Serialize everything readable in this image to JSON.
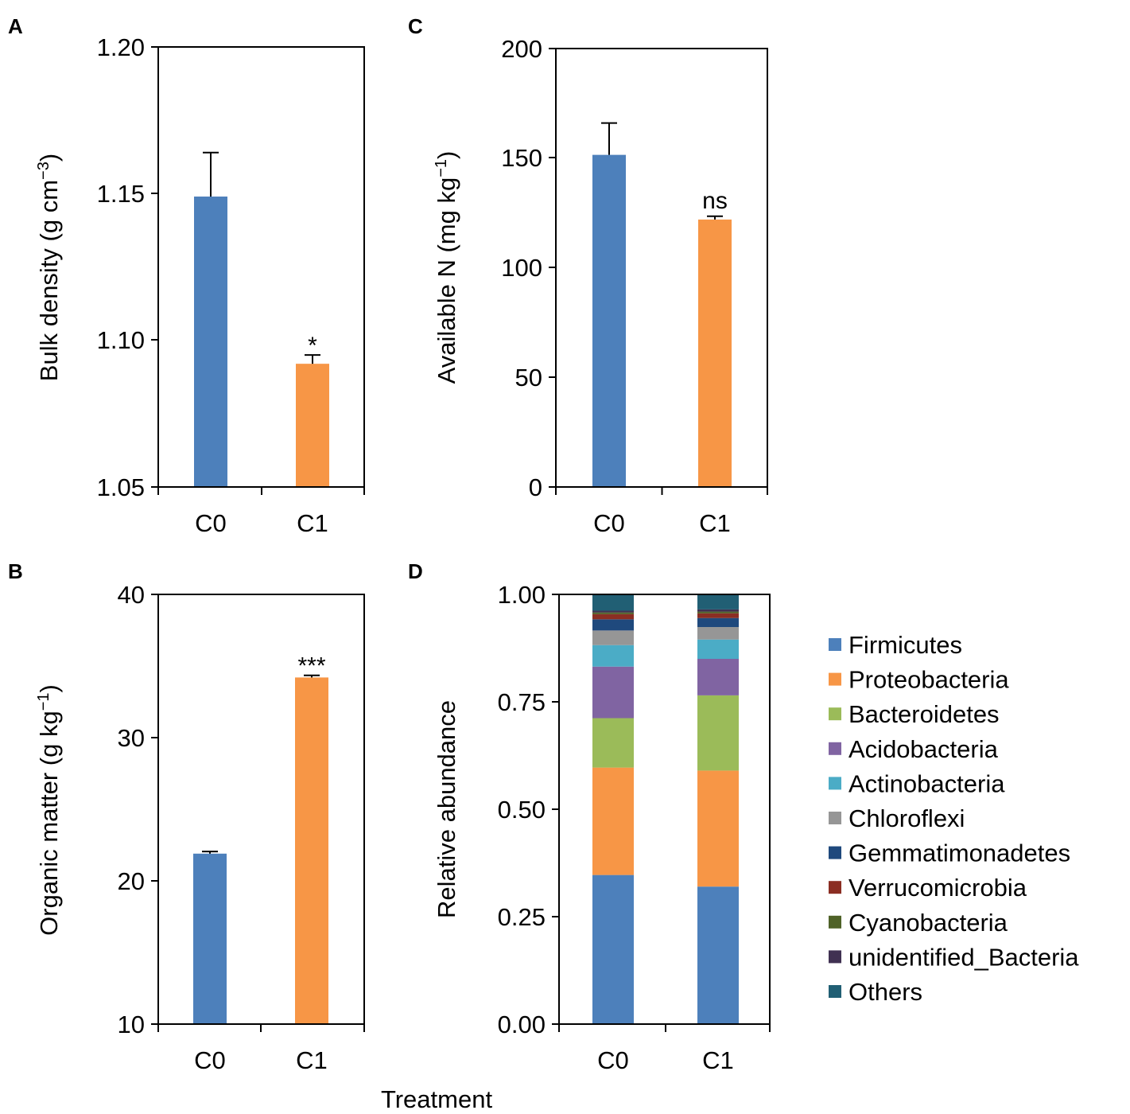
{
  "figure": {
    "shared_xlabel": "Treatment"
  },
  "chart_data": [
    {
      "panel": "A",
      "type": "bar",
      "categories": [
        "C0",
        "C1"
      ],
      "values": [
        1.149,
        1.092
      ],
      "errors": [
        0.015,
        0.003
      ],
      "colors": [
        "#4d80bb",
        "#f79646"
      ],
      "ylim": [
        1.05,
        1.2
      ],
      "yticks": [
        "1.05",
        "1.10",
        "1.15",
        "1.20"
      ],
      "ylabel": "Bulk density (g cm",
      "ylabel_sup": "−3",
      "ylabel_end": ")",
      "significance": [
        "",
        "*"
      ]
    },
    {
      "panel": "B",
      "type": "bar",
      "categories": [
        "C0",
        "C1"
      ],
      "values": [
        21.9,
        34.2
      ],
      "errors": [
        0.15,
        0.15
      ],
      "colors": [
        "#4d80bb",
        "#f79646"
      ],
      "ylim": [
        10,
        40
      ],
      "yticks": [
        "10",
        "20",
        "30",
        "40"
      ],
      "ylabel": "Organic matter (g kg",
      "ylabel_sup": "−1",
      "ylabel_end": ")",
      "significance": [
        "",
        "***"
      ]
    },
    {
      "panel": "C",
      "type": "bar",
      "categories": [
        "C0",
        "C1"
      ],
      "values": [
        151.5,
        122
      ],
      "errors": [
        14.5,
        1.5
      ],
      "colors": [
        "#4d80bb",
        "#f79646"
      ],
      "ylim": [
        0,
        200
      ],
      "yticks": [
        "0",
        "50",
        "100",
        "150",
        "200"
      ],
      "ylabel": "Available N (mg kg",
      "ylabel_sup": "−1",
      "ylabel_end": ")",
      "significance": [
        "",
        "ns"
      ]
    },
    {
      "panel": "D",
      "type": "bar",
      "stacked": true,
      "categories": [
        "C0",
        "C1"
      ],
      "ylim": [
        0,
        1
      ],
      "yticks": [
        "0.00",
        "0.25",
        "0.50",
        "0.75",
        "1.00"
      ],
      "ylabel": "Relative abundance",
      "series": [
        {
          "name": "Firmicutes",
          "color": "#4d80bb",
          "values": [
            0.347,
            0.32
          ]
        },
        {
          "name": "Proteobacteria",
          "color": "#f79646",
          "values": [
            0.25,
            0.27
          ]
        },
        {
          "name": "Bacteroidetes",
          "color": "#9bbb59",
          "values": [
            0.115,
            0.175
          ]
        },
        {
          "name": "Acidobacteria",
          "color": "#8064a2",
          "values": [
            0.12,
            0.085
          ]
        },
        {
          "name": "Actinobacteria",
          "color": "#4bacc6",
          "values": [
            0.05,
            0.045
          ]
        },
        {
          "name": "Chloroflexi",
          "color": "#969696",
          "values": [
            0.034,
            0.029
          ]
        },
        {
          "name": "Gemmatimonadetes",
          "color": "#1f497d",
          "values": [
            0.026,
            0.021
          ]
        },
        {
          "name": "Verrucomicrobia",
          "color": "#8b2e23",
          "values": [
            0.012,
            0.011
          ]
        },
        {
          "name": "Cyanobacteria",
          "color": "#4f6228",
          "values": [
            0.004,
            0.004
          ]
        },
        {
          "name": "unidentified_Bacteria",
          "color": "#403152",
          "values": [
            0.004,
            0.005
          ]
        },
        {
          "name": "Others",
          "color": "#215f74",
          "values": [
            0.038,
            0.035
          ]
        }
      ]
    }
  ]
}
